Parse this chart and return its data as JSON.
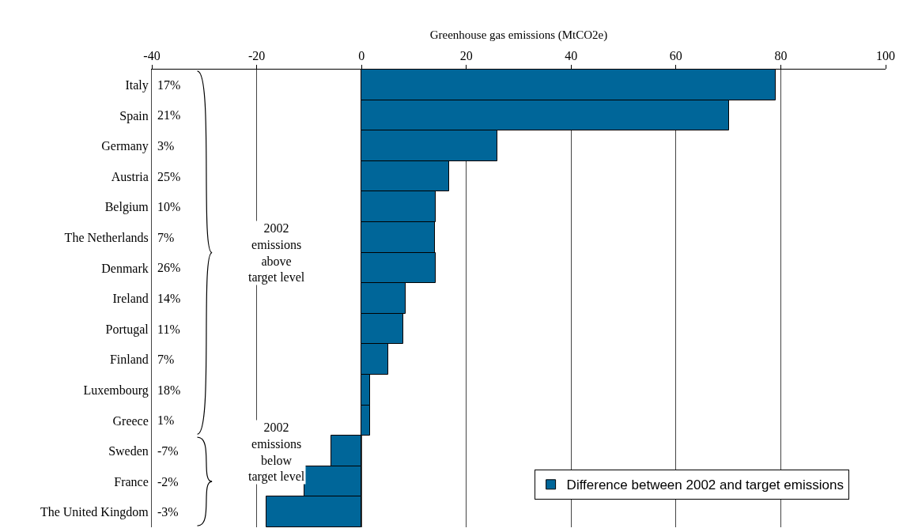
{
  "chart_data": {
    "type": "bar",
    "orientation": "horizontal",
    "xlabel": "Greenhouse gas emissions (MtCO2e)",
    "categories": [
      "Italy",
      "Spain",
      "Germany",
      "Austria",
      "Belgium",
      "The Netherlands",
      "Denmark",
      "Ireland",
      "Portugal",
      "Finland",
      "Luxembourg",
      "Greece",
      "Sweden",
      "France",
      "The United Kingdom"
    ],
    "series": [
      {
        "name": "Difference between 2002 and target emissions",
        "color": "#006699",
        "values": [
          79.0,
          70.1,
          26.0,
          16.7,
          14.2,
          14.0,
          14.1,
          8.4,
          8.0,
          5.1,
          1.6,
          1.6,
          -5.7,
          -10.9,
          -18.1
        ]
      }
    ],
    "xlim": [
      -40,
      100
    ],
    "xticks": [
      -40,
      -20,
      0,
      20,
      40,
      60,
      80,
      100
    ],
    "grid": "x",
    "legend": "bottom right",
    "annotations": [
      "17%",
      "21%",
      "3%",
      "25%",
      "10%",
      "7%",
      "26%",
      "14%",
      "11%",
      "7%",
      "18%",
      "1%",
      "-7%",
      "-2%",
      "-3%",
      "2002\nemissions\nabove\ntarget level",
      "2002\nemissions\nbelow\ntarget level"
    ]
  }
}
